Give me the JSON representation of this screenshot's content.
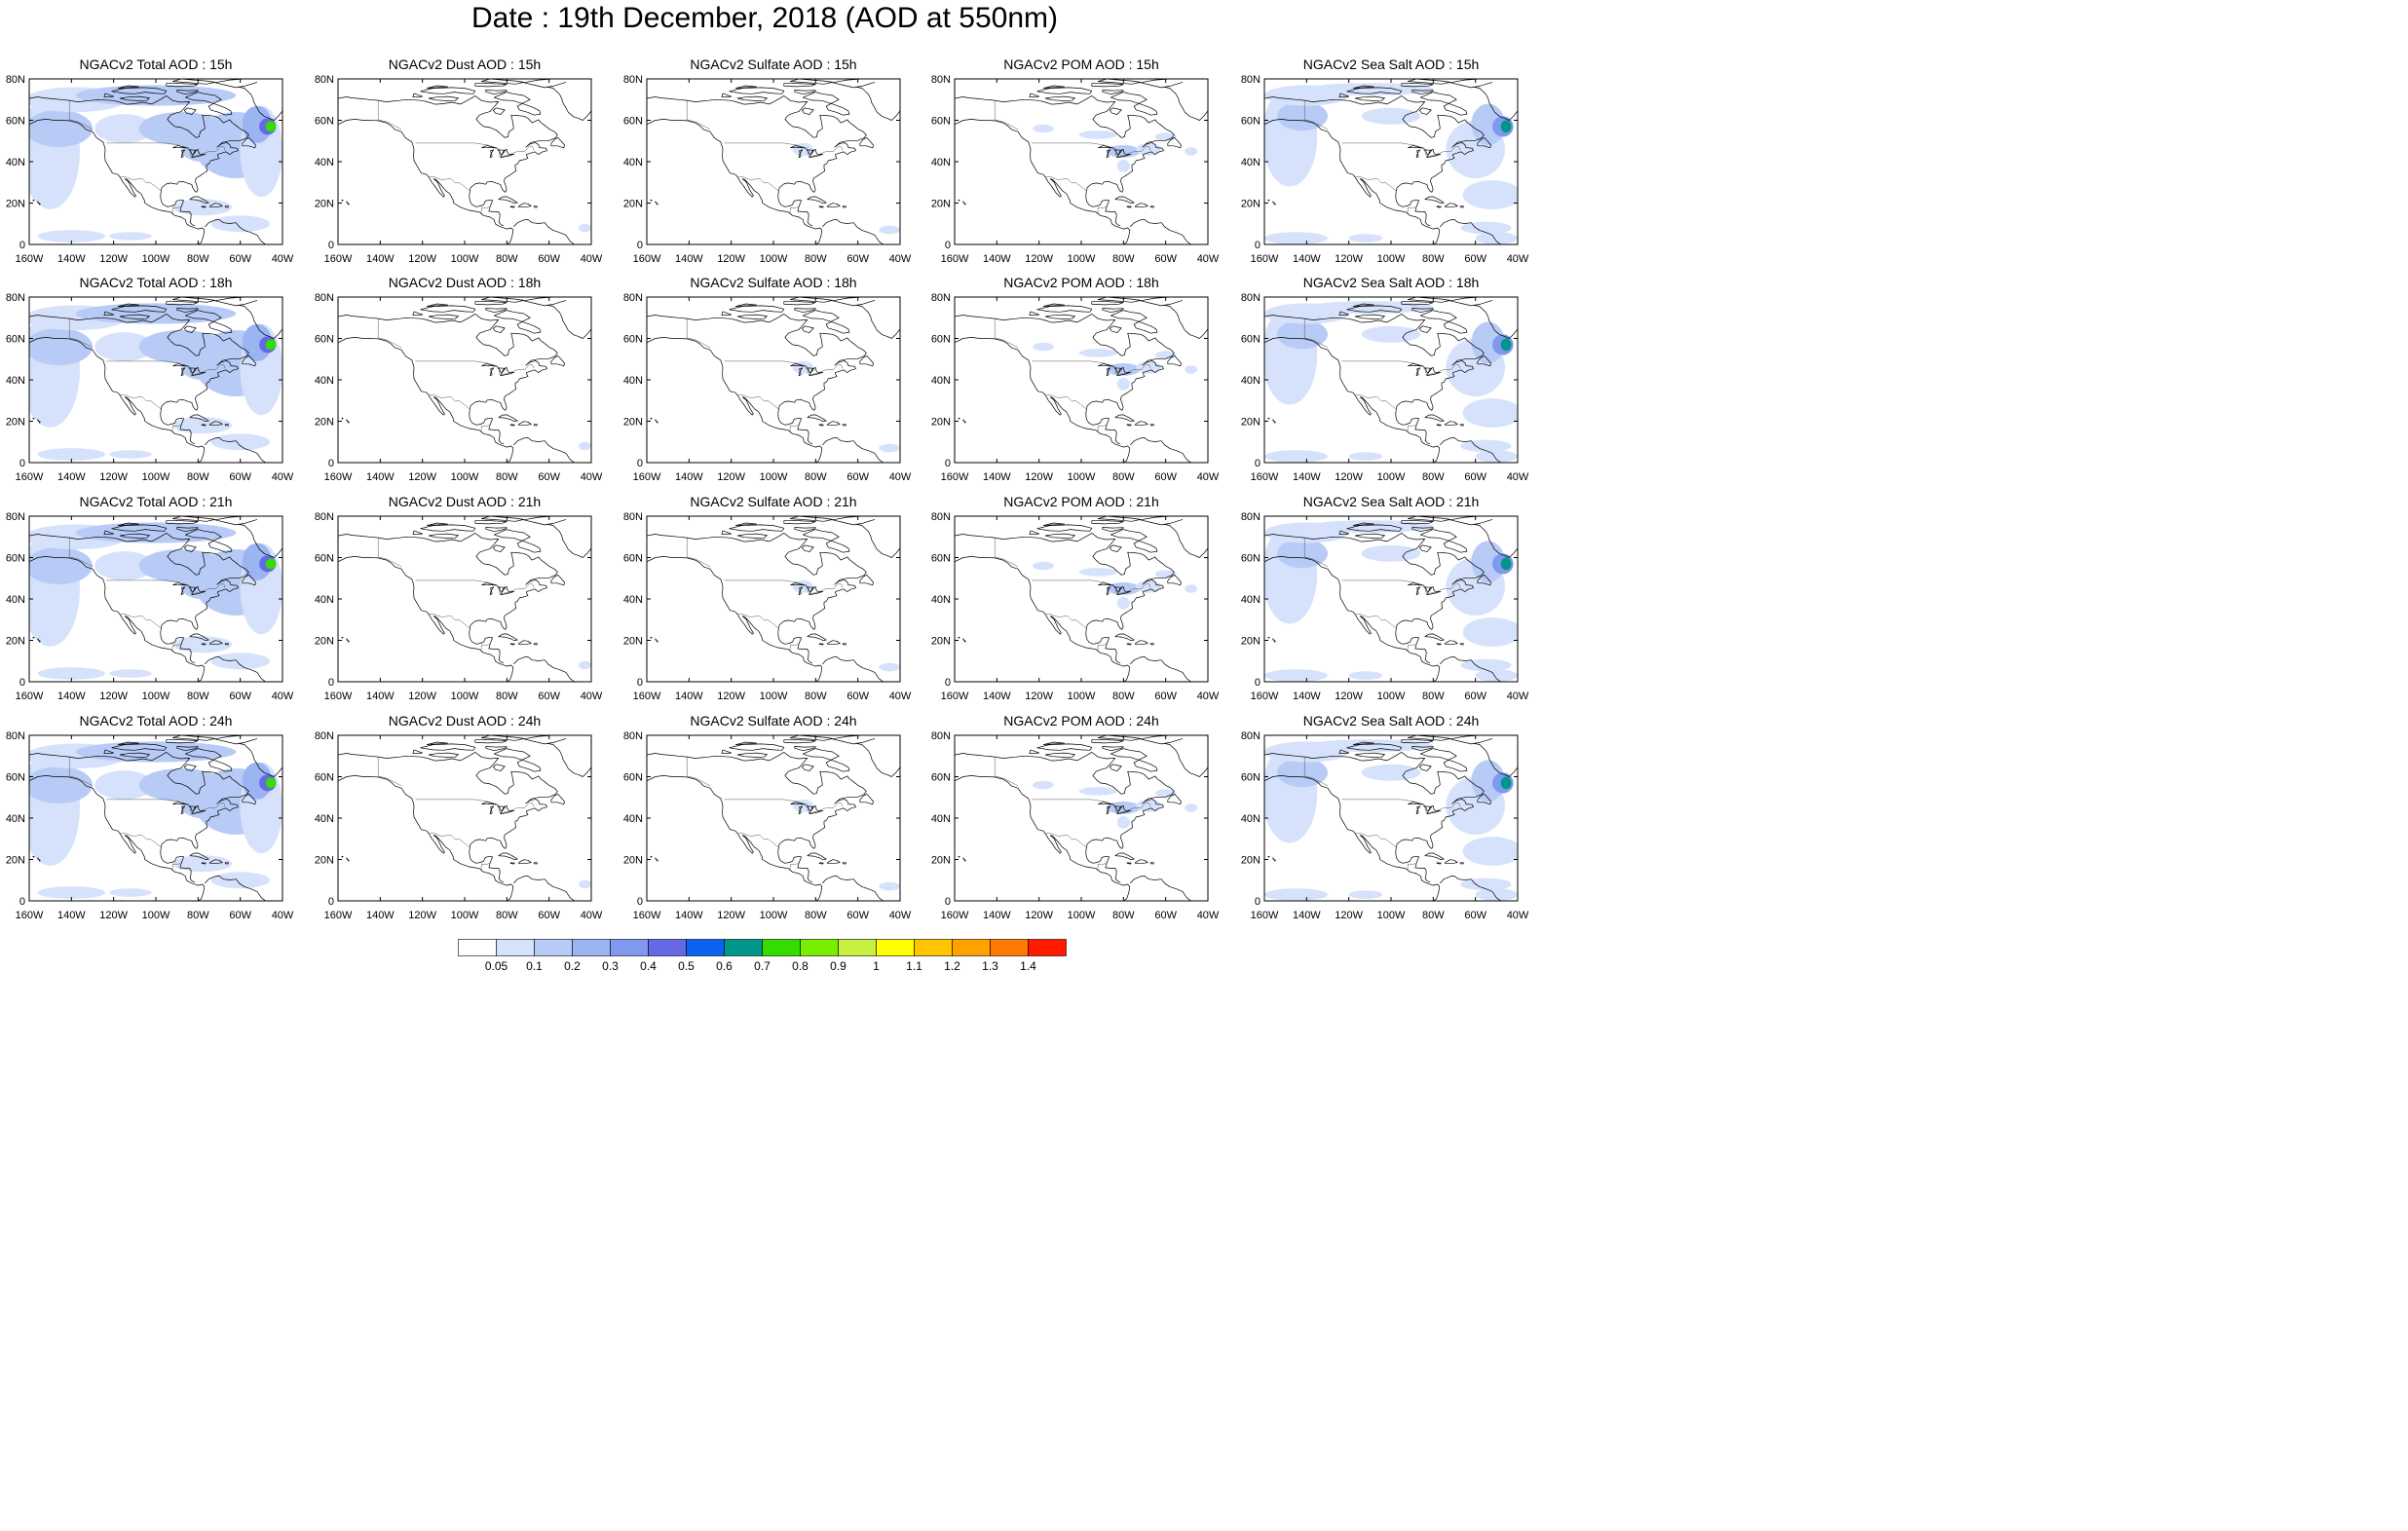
{
  "title": "Date : 19th December, 2018 (AOD at 550nm)",
  "lat_ticks": [
    "80N",
    "60N",
    "40N",
    "20N",
    "0"
  ],
  "lon_ticks": [
    "160W",
    "140W",
    "120W",
    "100W",
    "80W",
    "60W",
    "40W"
  ],
  "map_extent": {
    "lon": [
      -160,
      -40
    ],
    "lat": [
      0,
      80
    ]
  },
  "panels": [
    [
      {
        "title": "NGACv2 Total AOD : 15h",
        "species": "total"
      },
      {
        "title": "NGACv2 Dust AOD : 15h",
        "species": "dust"
      },
      {
        "title": "NGACv2 Sulfate AOD : 15h",
        "species": "sulfate"
      },
      {
        "title": "NGACv2 POM AOD : 15h",
        "species": "pom"
      },
      {
        "title": "NGACv2 Sea Salt AOD : 15h",
        "species": "seasalt"
      }
    ],
    [
      {
        "title": "NGACv2 Total AOD : 18h",
        "species": "total"
      },
      {
        "title": "NGACv2 Dust AOD : 18h",
        "species": "dust"
      },
      {
        "title": "NGACv2 Sulfate AOD : 18h",
        "species": "sulfate"
      },
      {
        "title": "NGACv2 POM AOD : 18h",
        "species": "pom"
      },
      {
        "title": "NGACv2 Sea Salt AOD : 18h",
        "species": "seasalt"
      }
    ],
    [
      {
        "title": "NGACv2 Total AOD : 21h",
        "species": "total"
      },
      {
        "title": "NGACv2 Dust AOD : 21h",
        "species": "dust"
      },
      {
        "title": "NGACv2 Sulfate AOD : 21h",
        "species": "sulfate"
      },
      {
        "title": "NGACv2 POM AOD : 21h",
        "species": "pom"
      },
      {
        "title": "NGACv2 Sea Salt AOD : 21h",
        "species": "seasalt"
      }
    ],
    [
      {
        "title": "NGACv2 Total AOD : 24h",
        "species": "total"
      },
      {
        "title": "NGACv2 Dust AOD : 24h",
        "species": "dust"
      },
      {
        "title": "NGACv2 Sulfate AOD : 24h",
        "species": "sulfate"
      },
      {
        "title": "NGACv2 POM AOD : 24h",
        "species": "pom"
      },
      {
        "title": "NGACv2 Sea Salt  AOD : 24h",
        "species": "seasalt"
      }
    ]
  ],
  "colorbar": {
    "labels": [
      "0.05",
      "0.1",
      "0.2",
      "0.3",
      "0.4",
      "0.5",
      "0.6",
      "0.7",
      "0.8",
      "0.9",
      "1",
      "1.1",
      "1.2",
      "1.3",
      "1.4"
    ],
    "colors": [
      "#ffffff",
      "#d6e2fb",
      "#b8cbf6",
      "#9bb4f2",
      "#7f99ee",
      "#6569e6",
      "#0a63f0",
      "#00968a",
      "#34dc00",
      "#7bed00",
      "#c8f040",
      "#ffff00",
      "#ffc600",
      "#ffa200",
      "#ff7a00",
      "#ff1a00"
    ]
  }
}
